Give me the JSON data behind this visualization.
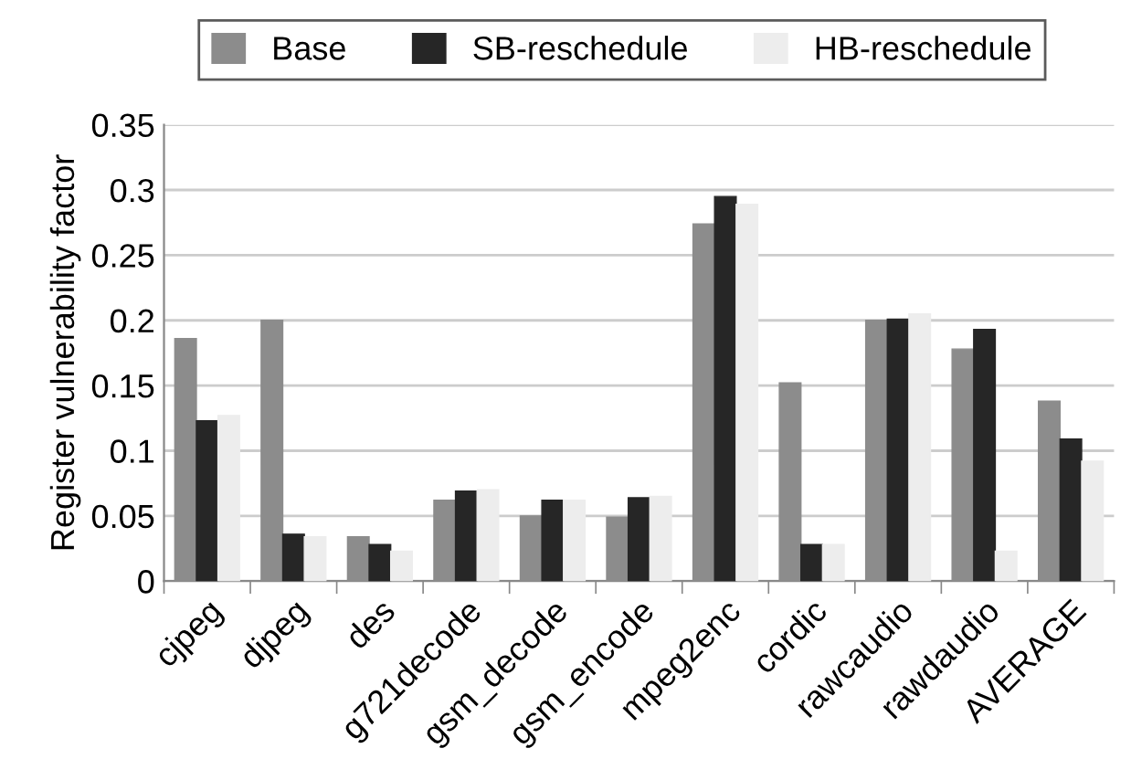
{
  "chart_data": {
    "type": "bar",
    "ylabel": "Register vulnerability factor",
    "categories": [
      "cjpeg",
      "djpeg",
      "des",
      "g721decode",
      "gsm_decode",
      "gsm_encode",
      "mpeg2enc",
      "cordic",
      "rawcaudio",
      "rawdaudio",
      "AVERAGE"
    ],
    "series": [
      {
        "name": "Base",
        "color": "#8c8c8c",
        "values": [
          0.186,
          0.2,
          0.034,
          0.062,
          0.05,
          0.049,
          0.274,
          0.152,
          0.2,
          0.178,
          0.138
        ]
      },
      {
        "name": "SB-reschedule",
        "color": "#262626",
        "values": [
          0.123,
          0.036,
          0.028,
          0.069,
          0.062,
          0.064,
          0.295,
          0.028,
          0.201,
          0.193,
          0.109
        ]
      },
      {
        "name": "HB-reschedule",
        "color": "#ededed",
        "values": [
          0.127,
          0.034,
          0.023,
          0.07,
          0.062,
          0.065,
          0.289,
          0.028,
          0.205,
          0.023,
          0.092
        ]
      }
    ],
    "ylim": [
      0,
      0.35
    ],
    "yticks": [
      0,
      0.05,
      0.1,
      0.15,
      0.2,
      0.25,
      0.3,
      0.35
    ],
    "grid": "y",
    "legend": "top"
  }
}
